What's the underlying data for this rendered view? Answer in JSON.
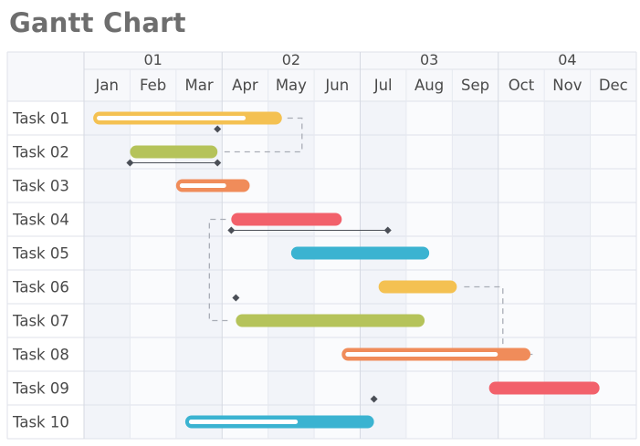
{
  "title": "Gantt Chart",
  "chart_data": {
    "type": "gantt",
    "title": "Gantt Chart",
    "quarters": [
      "01",
      "02",
      "03",
      "04"
    ],
    "months": [
      "Jan",
      "Feb",
      "Mar",
      "Apr",
      "May",
      "Jun",
      "Jul",
      "Aug",
      "Sep",
      "Oct",
      "Nov",
      "Dec"
    ],
    "colors": {
      "yellow": "#f4c152",
      "olive": "#b5c35a",
      "orange": "#f08c5a",
      "red": "#f2616b",
      "blue": "#3bb3d1"
    },
    "tasks": [
      {
        "name": "Task 01",
        "start": 0.2,
        "end": 4.3,
        "color": "#f4c152",
        "progress": 0.82
      },
      {
        "name": "Task 02",
        "start": 1.0,
        "end": 2.9,
        "color": "#b5c35a",
        "progress": 0
      },
      {
        "name": "Task 03",
        "start": 2.0,
        "end": 3.6,
        "color": "#f08c5a",
        "progress": 0.7
      },
      {
        "name": "Task 04",
        "start": 3.2,
        "end": 5.6,
        "color": "#f2616b",
        "progress": 0
      },
      {
        "name": "Task 05",
        "start": 4.5,
        "end": 7.5,
        "color": "#3bb3d1",
        "progress": 0
      },
      {
        "name": "Task 06",
        "start": 6.4,
        "end": 8.1,
        "color": "#f4c152",
        "progress": 0
      },
      {
        "name": "Task 07",
        "start": 3.3,
        "end": 7.4,
        "color": "#b5c35a",
        "progress": 0
      },
      {
        "name": "Task 08",
        "start": 5.6,
        "end": 9.7,
        "color": "#f08c5a",
        "progress": 0.84
      },
      {
        "name": "Task 09",
        "start": 8.8,
        "end": 11.2,
        "color": "#f2616b",
        "progress": 0
      },
      {
        "name": "Task 10",
        "start": 2.2,
        "end": 6.3,
        "color": "#3bb3d1",
        "progress": 0.6
      }
    ],
    "milestone_lines": [
      {
        "row": 1,
        "from": 1.0,
        "to": 2.9
      },
      {
        "row": 3,
        "from": 3.2,
        "to": 6.6
      }
    ],
    "milestones": [
      {
        "row": 0,
        "at": 2.9
      },
      {
        "row": 1,
        "at": 1.0
      },
      {
        "row": 1,
        "at": 2.9
      },
      {
        "row": 3,
        "at": 3.2
      },
      {
        "row": 3,
        "at": 6.6
      },
      {
        "row": 5,
        "at": 3.3
      },
      {
        "row": 8,
        "at": 6.3
      }
    ],
    "dependencies": [
      {
        "from_task": 0,
        "to_task": 1
      },
      {
        "from_task": 3,
        "to_task": 6
      },
      {
        "from_task": 5,
        "to_task": 7
      }
    ]
  }
}
